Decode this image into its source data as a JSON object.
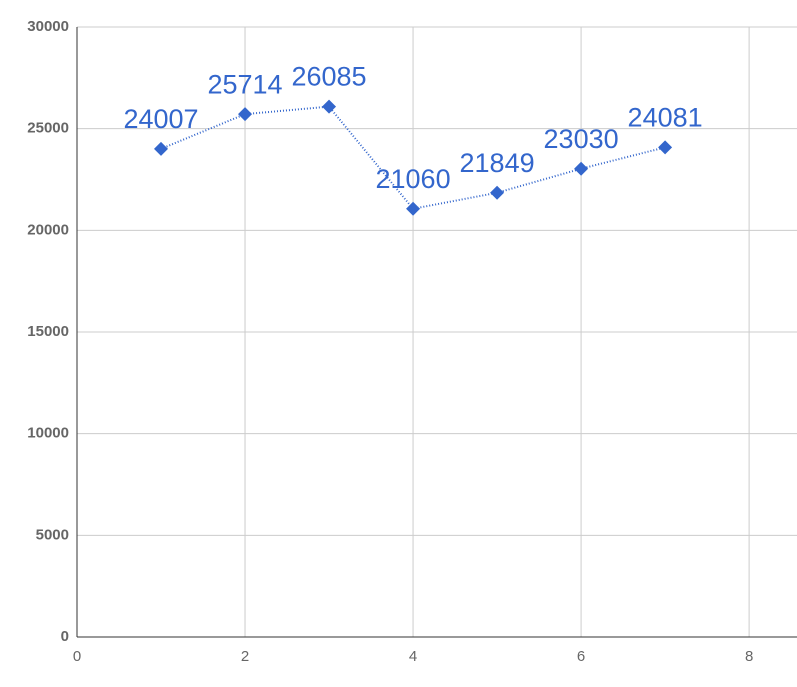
{
  "chart_data": {
    "type": "line",
    "x": [
      1,
      2,
      3,
      4,
      5,
      6,
      7
    ],
    "series": [
      {
        "color": "#3366cc",
        "values": [
          24007,
          25714,
          26085,
          21060,
          21849,
          23030,
          24081
        ]
      }
    ],
    "xlim": [
      0,
      8.57
    ],
    "xticks": [
      0,
      2,
      4,
      6,
      8
    ],
    "ylim": [
      0,
      30000
    ],
    "yticks": [
      0,
      5000,
      10000,
      15000,
      20000,
      25000,
      30000
    ],
    "grid": true
  }
}
